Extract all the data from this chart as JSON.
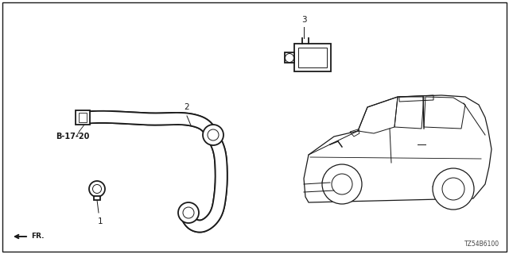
{
  "bg_color": "#ffffff",
  "border_color": "#1a1a1a",
  "text_color": "#1a1a1a",
  "part_number_code": "TZ54B6100",
  "label_b1720": "B-17-20",
  "label_fr": "FR.",
  "label_1": "1",
  "label_2": "2",
  "label_3": "3",
  "figsize": [
    6.4,
    3.2
  ],
  "dpi": 100,
  "hose_color": "#222222",
  "car_color": "#2a2a2a",
  "line_width": 1.1,
  "hose_lw": 1.3,
  "car_lw": 0.9
}
